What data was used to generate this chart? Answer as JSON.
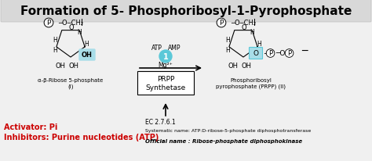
{
  "title": "Formation of 5- Phosphoribosyl-1-Pyrophosphate",
  "title_fontsize": 11,
  "title_fontweight": "bold",
  "bg_color": "#e8e8e8",
  "main_bg": "#f0f0f0",
  "title_box_color": "#d8d8d8",
  "activator_text": "Activator: Pi",
  "inhibitor_text": "Inhibitors: Purine nucleotides (ATP)",
  "red_color": "#cc0000",
  "ec_text": "EC 2.7.6.1",
  "systematic_text": "Systematic name: ATP:D-ribose-5-phosphate diphosphotransferase",
  "official_text": "Official name : Ribose-phosphate diphosphokinase",
  "label_I": "α-β-Ribose 5-phosphate\n(I)",
  "label_II": "Phosphoribosyl\npyrophosphate (PRPP) (II)",
  "prpp_box": "PRPP\nSynthetase",
  "arrow_label_top": "ATP   AMP",
  "arrow_label_mid": "Mg²⁺",
  "circle_label": "1",
  "cyan_color": "#5bc8d8",
  "cyan_light": "#a8dde8"
}
